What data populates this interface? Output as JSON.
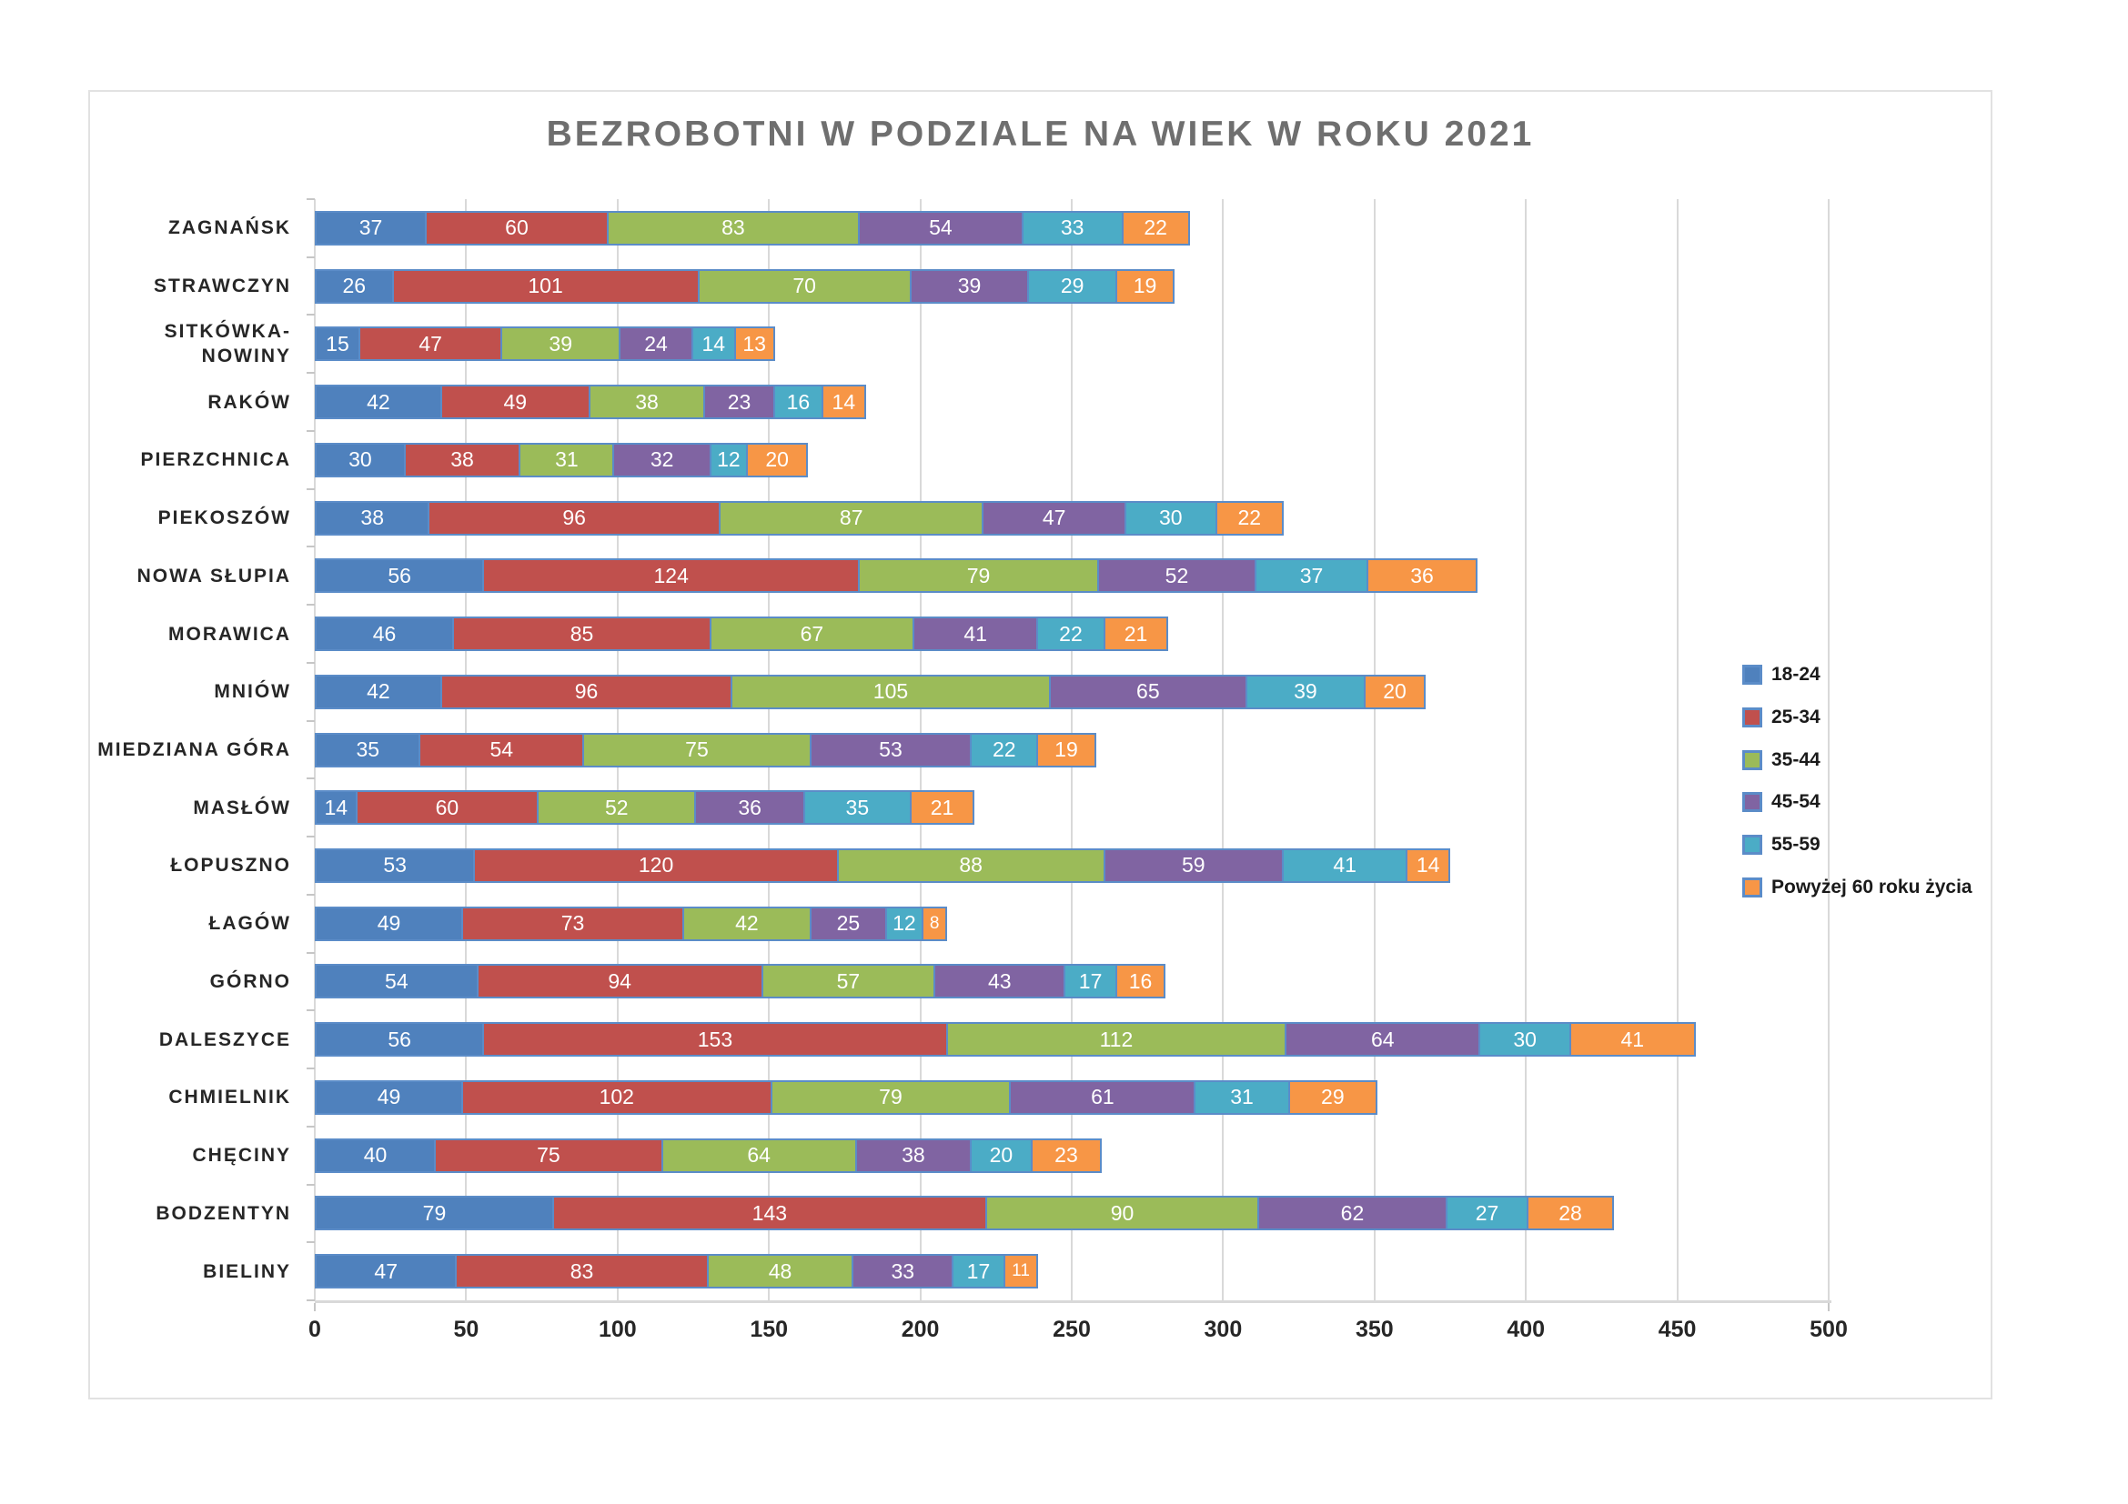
{
  "chart_data": {
    "type": "bar",
    "variant": "horizontal-stacked",
    "title": "BEZROBOTNI W PODZIALE NA WIEK W ROKU 2021",
    "xlabel": "",
    "ylabel": "",
    "xlim": [
      0,
      500
    ],
    "x_ticks": [
      0,
      50,
      100,
      150,
      200,
      250,
      300,
      350,
      400,
      450,
      500
    ],
    "grid": true,
    "legend_position": "right",
    "segment_border_color": "#5b8cc8",
    "categories": [
      "ZAGNAŃSK",
      "STRAWCZYN",
      "SITKÓWKA-NOWINY",
      "RAKÓW",
      "PIERZCHNICA",
      "PIEKOSZÓW",
      "NOWA SŁUPIA",
      "MORAWICA",
      "MNIÓW",
      "MIEDZIANA GÓRA",
      "MASŁÓW",
      "ŁOPUSZNO",
      "ŁAGÓW",
      "GÓRNO",
      "DALESZYCE",
      "CHMIELNIK",
      "CHĘCINY",
      "BODZENTYN",
      "BIELINY"
    ],
    "series": [
      {
        "name": "18-24",
        "color": "#4F81BD",
        "values": [
          37,
          26,
          15,
          42,
          30,
          38,
          56,
          46,
          42,
          35,
          14,
          53,
          49,
          54,
          56,
          49,
          40,
          79,
          47
        ]
      },
      {
        "name": "25-34",
        "color": "#C0504D",
        "values": [
          60,
          101,
          47,
          49,
          38,
          96,
          124,
          85,
          96,
          54,
          60,
          120,
          73,
          94,
          153,
          102,
          75,
          143,
          83
        ]
      },
      {
        "name": "35-44",
        "color": "#9BBB59",
        "values": [
          83,
          70,
          39,
          38,
          31,
          87,
          79,
          67,
          105,
          75,
          52,
          88,
          42,
          57,
          112,
          79,
          64,
          90,
          48
        ]
      },
      {
        "name": "45-54",
        "color": "#8064A2",
        "values": [
          54,
          39,
          24,
          23,
          32,
          47,
          52,
          41,
          65,
          53,
          36,
          59,
          25,
          43,
          64,
          61,
          38,
          62,
          33
        ]
      },
      {
        "name": "55-59",
        "color": "#4BACC6",
        "values": [
          33,
          29,
          14,
          16,
          12,
          30,
          37,
          22,
          39,
          22,
          35,
          41,
          12,
          17,
          30,
          31,
          20,
          27,
          17
        ]
      },
      {
        "name": "Powyżej 60 roku życia",
        "color": "#F79646",
        "values": [
          22,
          19,
          13,
          14,
          20,
          22,
          36,
          21,
          20,
          19,
          21,
          14,
          8,
          16,
          41,
          29,
          23,
          28,
          11
        ]
      }
    ]
  }
}
